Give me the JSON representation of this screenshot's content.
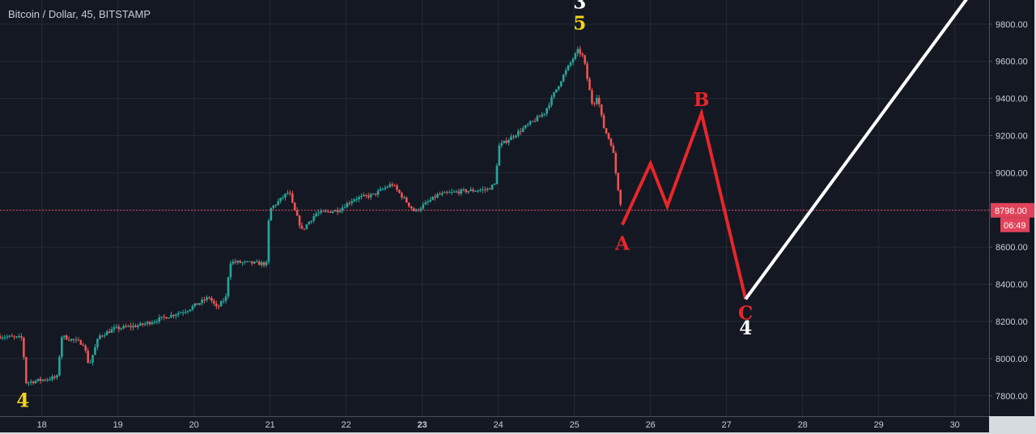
{
  "chart_data": {
    "type": "candlestick",
    "title": "Bitcoin / Dollar, 45, BITSTAMP",
    "x_unit": "day of month",
    "x_ticks": [
      "18",
      "19",
      "20",
      "21",
      "22",
      "23",
      "24",
      "25",
      "26",
      "27",
      "28",
      "29",
      "30"
    ],
    "y_ticks": [
      "7800.00",
      "8000.00",
      "8200.00",
      "8400.00",
      "8600.00",
      "8800.00",
      "9000.00",
      "9200.00",
      "9400.00",
      "9600.00",
      "9800.00"
    ],
    "ylim": [
      7690,
      9930
    ],
    "xlim": [
      17.45,
      30.45
    ],
    "grid": true,
    "colors": {
      "background": "#141823",
      "grid": "#252a36",
      "up": "#26a69a",
      "down": "#ef5350",
      "price_line": "#e0435a",
      "projection_red": "#e8262a",
      "projection_white": "#ffffff",
      "label_yellow": "#f5d417",
      "label_red": "#e8262a",
      "label_white": "#ffffff",
      "axis_text": "#c8ccd4"
    },
    "price_path": [
      [
        17.45,
        8120
      ],
      [
        17.75,
        8110
      ],
      [
        17.78,
        7870
      ],
      [
        18.2,
        7900
      ],
      [
        18.26,
        8120
      ],
      [
        18.55,
        8080
      ],
      [
        18.62,
        7960
      ],
      [
        18.75,
        8120
      ],
      [
        18.95,
        8160
      ],
      [
        19.3,
        8180
      ],
      [
        19.6,
        8220
      ],
      [
        19.9,
        8260
      ],
      [
        20.2,
        8330
      ],
      [
        20.3,
        8270
      ],
      [
        20.42,
        8330
      ],
      [
        20.47,
        8520
      ],
      [
        20.95,
        8510
      ],
      [
        20.99,
        8800
      ],
      [
        21.25,
        8900
      ],
      [
        21.3,
        8820
      ],
      [
        21.42,
        8690
      ],
      [
        21.6,
        8780
      ],
      [
        21.9,
        8800
      ],
      [
        22.1,
        8860
      ],
      [
        22.35,
        8880
      ],
      [
        22.6,
        8940
      ],
      [
        22.9,
        8790
      ],
      [
        23.2,
        8880
      ],
      [
        23.5,
        8900
      ],
      [
        23.85,
        8910
      ],
      [
        23.96,
        8940
      ],
      [
        24.0,
        9140
      ],
      [
        24.3,
        9230
      ],
      [
        24.6,
        9320
      ],
      [
        24.85,
        9520
      ],
      [
        24.96,
        9600
      ],
      [
        25.05,
        9660
      ],
      [
        25.12,
        9620
      ],
      [
        25.18,
        9480
      ],
      [
        25.24,
        9360
      ],
      [
        25.3,
        9420
      ],
      [
        25.38,
        9250
      ],
      [
        25.5,
        9140
      ],
      [
        25.55,
        8980
      ],
      [
        25.6,
        8850
      ],
      [
        25.63,
        8798
      ]
    ],
    "last_price": {
      "value": 8798,
      "label": "8798.00",
      "countdown": "06:49"
    },
    "projection_abc": [
      [
        25.63,
        8720
      ],
      [
        26.0,
        9050
      ],
      [
        26.22,
        8820
      ],
      [
        26.67,
        9320
      ],
      [
        27.25,
        8320
      ]
    ],
    "projection_up": [
      [
        27.25,
        8320
      ],
      [
        30.2,
        9960
      ]
    ],
    "wave_labels": [
      {
        "text": "4",
        "x": 17.75,
        "y": 7775,
        "color": "yellow"
      },
      {
        "text": "3",
        "x": 25.07,
        "y": 9920,
        "color": "white"
      },
      {
        "text": "5",
        "x": 25.07,
        "y": 9805,
        "color": "yellow"
      },
      {
        "text": "A",
        "x": 25.63,
        "y": 8620,
        "color": "red"
      },
      {
        "text": "B",
        "x": 26.67,
        "y": 9395,
        "color": "red"
      },
      {
        "text": "C",
        "x": 27.25,
        "y": 8245,
        "color": "red"
      },
      {
        "text": "4",
        "x": 27.25,
        "y": 8165,
        "color": "white"
      }
    ]
  }
}
